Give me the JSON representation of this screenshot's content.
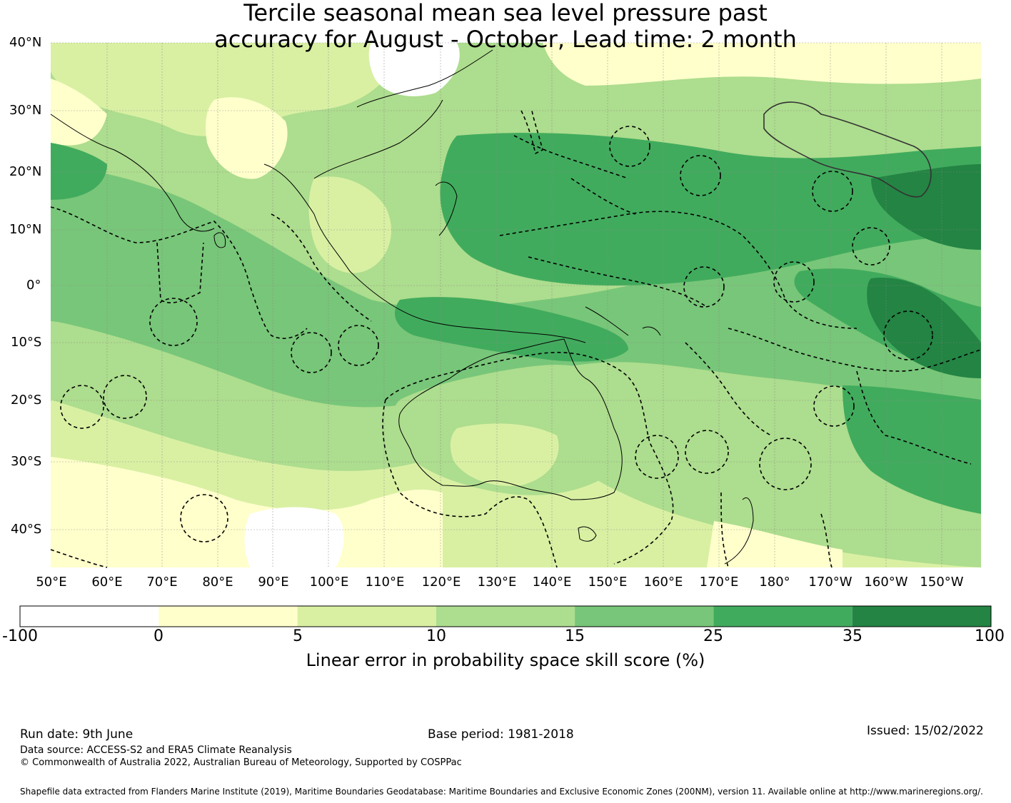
{
  "title": {
    "line1": "Tercile seasonal mean sea level pressure past",
    "line2": "accuracy for August - October, Lead time: 2 month"
  },
  "map": {
    "lat_labels": [
      "40°N",
      "30°N",
      "20°N",
      "10°N",
      "0°",
      "10°S",
      "20°S",
      "30°S",
      "40°S"
    ],
    "lon_labels": [
      "50°E",
      "60°E",
      "70°E",
      "80°E",
      "90°E",
      "100°E",
      "110°E",
      "120°E",
      "130°E",
      "140°E",
      "150°E",
      "160°E",
      "170°E",
      "180°",
      "170°W",
      "160°W",
      "150°W"
    ],
    "lat_range": [
      -46,
      40
    ],
    "lon_range": [
      50,
      217
    ],
    "grid": true,
    "projection": "Mercator"
  },
  "colorbar": {
    "ticks": [
      "-100",
      "0",
      "5",
      "10",
      "15",
      "25",
      "35",
      "100"
    ],
    "colors": [
      "#ffffff",
      "#ffffcc",
      "#d9f0a3",
      "#addd8e",
      "#78c679",
      "#41ab5d",
      "#238443"
    ],
    "label": "Linear error in probability space skill score (%)"
  },
  "footer": {
    "run_date": "Run date: 9th June",
    "base_period": "Base period: 1981-2018",
    "issued": "Issued: 15/02/2022",
    "data_source": "Data source: ACCESS-S2 and ERA5 Climate Reanalysis",
    "copyright": "© Commonwealth of Australia 2022, Australian Bureau of Meteorology, Supported by COSPPac",
    "shapefile": "Shapefile data extracted from Flanders Marine Institute (2019), Maritime Boundaries Geodatabase: Maritime Boundaries and Exclusive Economic Zones (200NM), version 11. Available online at http://www.marineregions.org/."
  }
}
